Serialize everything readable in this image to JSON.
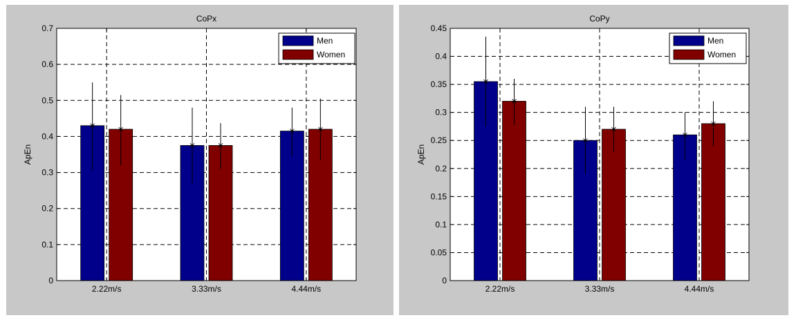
{
  "colors": {
    "men": "#00008b",
    "women": "#800000",
    "figure_bg": "#c8c8c8"
  },
  "chart_data": [
    {
      "type": "bar",
      "title": "CoPx",
      "xlabel": "",
      "ylabel": "ApEn",
      "categories": [
        "2.22m/s",
        "3.33m/s",
        "4.44m/s"
      ],
      "ylim": [
        0,
        0.7
      ],
      "yticks": [
        0,
        0.1,
        0.2,
        0.3,
        0.4,
        0.5,
        0.6,
        0.7
      ],
      "ytick_labels": [
        "0",
        "0.1",
        "0.2",
        "0.3",
        "0.4",
        "0.5",
        "0.6",
        "0.7"
      ],
      "grid": true,
      "legend_position": "top-right",
      "series": [
        {
          "name": "Men",
          "values": [
            0.43,
            0.375,
            0.415
          ],
          "err_low": [
            0.305,
            0.27,
            0.345
          ],
          "err_high": [
            0.55,
            0.48,
            0.48
          ]
        },
        {
          "name": "Women",
          "values": [
            0.42,
            0.375,
            0.42
          ],
          "err_low": [
            0.32,
            0.31,
            0.335
          ],
          "err_high": [
            0.515,
            0.437,
            0.505
          ]
        }
      ]
    },
    {
      "type": "bar",
      "title": "CoPy",
      "xlabel": "",
      "ylabel": "ApEn",
      "categories": [
        "2.22m/s",
        "3.33m/s",
        "4.44m/s"
      ],
      "ylim": [
        0,
        0.45
      ],
      "yticks": [
        0,
        0.05,
        0.1,
        0.15,
        0.2,
        0.25,
        0.3,
        0.35,
        0.4,
        0.45
      ],
      "ytick_labels": [
        "0",
        "0.05",
        "0.1",
        "0.15",
        "0.2",
        "0.25",
        "0.3",
        "0.35",
        "0.4",
        "0.45"
      ],
      "grid": true,
      "legend_position": "top-right",
      "series": [
        {
          "name": "Men",
          "values": [
            0.355,
            0.25,
            0.26
          ],
          "err_low": [
            0.275,
            0.19,
            0.215
          ],
          "err_high": [
            0.435,
            0.31,
            0.3
          ]
        },
        {
          "name": "Women",
          "values": [
            0.32,
            0.27,
            0.28
          ],
          "err_low": [
            0.278,
            0.23,
            0.24
          ],
          "err_high": [
            0.36,
            0.31,
            0.32
          ]
        }
      ]
    }
  ]
}
